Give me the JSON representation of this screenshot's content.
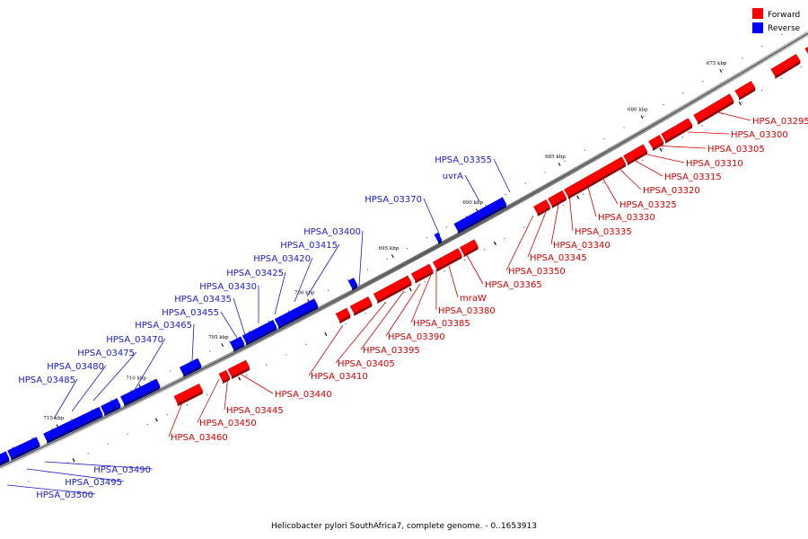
{
  "caption": "Helicobacter pylori SouthAfrica7, complete genome. - 0..1653913",
  "legend": [
    {
      "label": "Forward",
      "color": "#ff0000"
    },
    {
      "label": "Reverse",
      "color": "#0000ff"
    }
  ],
  "colors": {
    "forward": "#ff0000",
    "reverse": "#0000ff",
    "backbone": "#888888"
  },
  "ticks": [
    "675 kbp",
    "680 kbp",
    "685 kbp",
    "690 kbp",
    "695 kbp",
    "700 kbp",
    "705 kbp",
    "710 kbp",
    "715 kbp"
  ],
  "genes": [
    {
      "name": "HPSA_03295",
      "strand": "forward"
    },
    {
      "name": "HPSA_03300",
      "strand": "forward"
    },
    {
      "name": "HPSA_03305",
      "strand": "forward"
    },
    {
      "name": "HPSA_03310",
      "strand": "forward"
    },
    {
      "name": "HPSA_03315",
      "strand": "forward"
    },
    {
      "name": "HPSA_03320",
      "strand": "forward"
    },
    {
      "name": "HPSA_03325",
      "strand": "forward"
    },
    {
      "name": "HPSA_03330",
      "strand": "forward"
    },
    {
      "name": "HPSA_03335",
      "strand": "forward"
    },
    {
      "name": "HPSA_03340",
      "strand": "forward"
    },
    {
      "name": "HPSA_03345",
      "strand": "forward"
    },
    {
      "name": "HPSA_03350",
      "strand": "forward"
    },
    {
      "name": "HPSA_03355",
      "strand": "reverse"
    },
    {
      "name": "uvrA",
      "strand": "reverse"
    },
    {
      "name": "HPSA_03365",
      "strand": "forward"
    },
    {
      "name": "HPSA_03370",
      "strand": "reverse"
    },
    {
      "name": "mraW",
      "strand": "forward"
    },
    {
      "name": "HPSA_03380",
      "strand": "forward"
    },
    {
      "name": "HPSA_03385",
      "strand": "forward"
    },
    {
      "name": "HPSA_03390",
      "strand": "forward"
    },
    {
      "name": "HPSA_03395",
      "strand": "forward"
    },
    {
      "name": "HPSA_03400",
      "strand": "reverse"
    },
    {
      "name": "HPSA_03405",
      "strand": "forward"
    },
    {
      "name": "HPSA_03410",
      "strand": "forward"
    },
    {
      "name": "HPSA_03415",
      "strand": "reverse"
    },
    {
      "name": "HPSA_03420",
      "strand": "reverse"
    },
    {
      "name": "HPSA_03425",
      "strand": "reverse"
    },
    {
      "name": "HPSA_03430",
      "strand": "reverse"
    },
    {
      "name": "HPSA_03435",
      "strand": "reverse"
    },
    {
      "name": "HPSA_03440",
      "strand": "forward"
    },
    {
      "name": "HPSA_03445",
      "strand": "forward"
    },
    {
      "name": "HPSA_03450",
      "strand": "forward"
    },
    {
      "name": "HPSA_03455",
      "strand": "reverse"
    },
    {
      "name": "HPSA_03460",
      "strand": "forward"
    },
    {
      "name": "HPSA_03465",
      "strand": "reverse"
    },
    {
      "name": "HPSA_03470",
      "strand": "reverse"
    },
    {
      "name": "HPSA_03475",
      "strand": "reverse"
    },
    {
      "name": "HPSA_03480",
      "strand": "reverse"
    },
    {
      "name": "HPSA_03485",
      "strand": "reverse"
    },
    {
      "name": "HPSA_03490",
      "strand": "reverse"
    },
    {
      "name": "HPSA_03495",
      "strand": "reverse"
    },
    {
      "name": "HPSA_03500",
      "strand": "reverse"
    }
  ]
}
